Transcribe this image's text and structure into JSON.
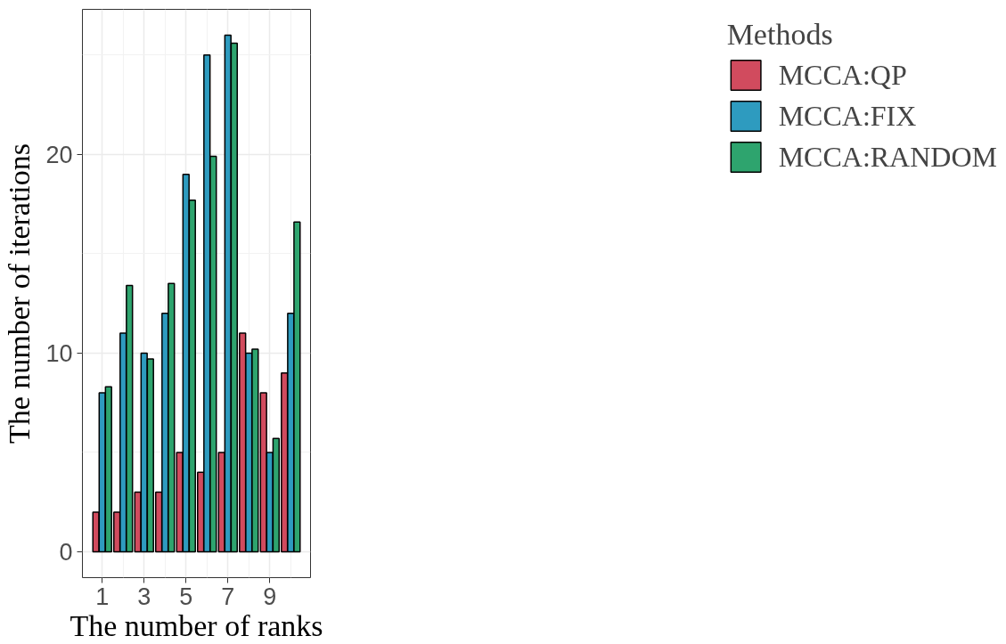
{
  "chart_data": {
    "type": "bar",
    "xlabel": "The number of ranks",
    "ylabel": "The number of iterations",
    "legend_title": "Methods",
    "legend": "right",
    "grid": true,
    "x": [
      1,
      2,
      3,
      4,
      5,
      6,
      7,
      8,
      9,
      10
    ],
    "xlim": [
      0.055,
      10.945
    ],
    "xticks": [
      1,
      3,
      5,
      7,
      9
    ],
    "ylim": [
      -1.3,
      27.3
    ],
    "yticks": [
      0,
      10,
      20
    ],
    "series": [
      {
        "name": "MCCA:QP",
        "color": "#d14b5e",
        "values": [
          2,
          2,
          3,
          3,
          5,
          4,
          5,
          11,
          8,
          9
        ]
      },
      {
        "name": "MCCA:FIX",
        "color": "#2e9bbf",
        "values": [
          8,
          11,
          10,
          12,
          19,
          25,
          26,
          10,
          5,
          12
        ]
      },
      {
        "name": "MCCA:RANDOM",
        "color": "#2ea46e",
        "values": [
          8.3,
          13.4,
          9.7,
          13.5,
          17.7,
          19.9,
          25.6,
          10.2,
          5.7,
          16.6
        ]
      }
    ]
  }
}
